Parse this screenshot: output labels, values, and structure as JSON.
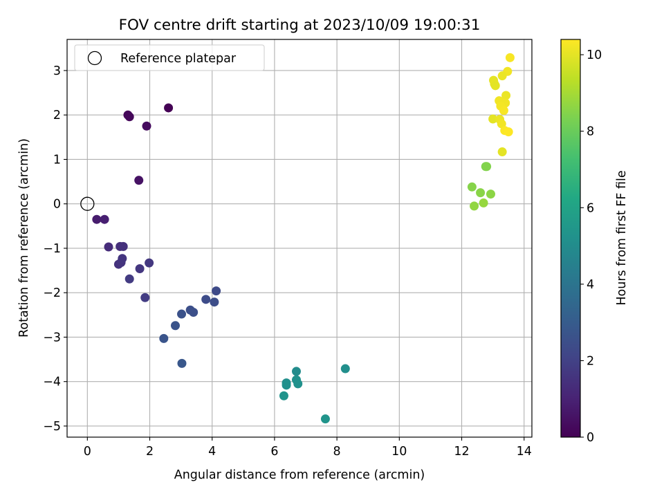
{
  "chart_data": {
    "type": "scatter",
    "title": "FOV centre drift starting at 2023/10/09 19:00:31",
    "xlabel": "Angular distance from reference (arcmin)",
    "ylabel": "Rotation from reference (arcmin)",
    "xlim": [
      -0.65,
      14.25
    ],
    "ylim": [
      -5.25,
      3.7
    ],
    "xticks": [
      0,
      2,
      4,
      6,
      8,
      10,
      12,
      14
    ],
    "yticks": [
      -5,
      -4,
      -3,
      -2,
      -1,
      0,
      1,
      2,
      3
    ],
    "grid": true,
    "legend": {
      "placement": "top-left",
      "entries": [
        "Reference platepar"
      ]
    },
    "reference_point": {
      "x": 0,
      "y": 0
    },
    "colorbar": {
      "label": "Hours from first FF file",
      "range": [
        0,
        10.4
      ],
      "ticks": [
        0,
        2,
        4,
        6,
        8,
        10
      ],
      "colormap": "viridis"
    },
    "points": [
      {
        "x": 2.6,
        "y": 2.16,
        "t": 0.0
      },
      {
        "x": 1.3,
        "y": 2.0,
        "t": 0.15
      },
      {
        "x": 1.35,
        "y": 1.96,
        "t": 0.2
      },
      {
        "x": 1.9,
        "y": 1.75,
        "t": 0.3
      },
      {
        "x": 1.65,
        "y": 0.53,
        "t": 0.5
      },
      {
        "x": 0.3,
        "y": -0.35,
        "t": 0.8
      },
      {
        "x": 0.55,
        "y": -0.35,
        "t": 0.9
      },
      {
        "x": 0.68,
        "y": -0.97,
        "t": 1.3
      },
      {
        "x": 1.05,
        "y": -0.96,
        "t": 1.4
      },
      {
        "x": 1.15,
        "y": -0.96,
        "t": 1.45
      },
      {
        "x": 1.0,
        "y": -1.36,
        "t": 1.5
      },
      {
        "x": 1.08,
        "y": -1.32,
        "t": 1.55
      },
      {
        "x": 1.12,
        "y": -1.23,
        "t": 1.6
      },
      {
        "x": 1.68,
        "y": -1.46,
        "t": 1.65
      },
      {
        "x": 1.98,
        "y": -1.33,
        "t": 1.7
      },
      {
        "x": 1.35,
        "y": -1.69,
        "t": 1.8
      },
      {
        "x": 1.85,
        "y": -2.11,
        "t": 1.85
      },
      {
        "x": 4.13,
        "y": -1.96,
        "t": 2.3
      },
      {
        "x": 3.8,
        "y": -2.15,
        "t": 2.4
      },
      {
        "x": 4.07,
        "y": -2.21,
        "t": 2.45
      },
      {
        "x": 3.3,
        "y": -2.39,
        "t": 2.5
      },
      {
        "x": 3.4,
        "y": -2.44,
        "t": 2.55
      },
      {
        "x": 3.02,
        "y": -2.48,
        "t": 2.6
      },
      {
        "x": 2.82,
        "y": -2.74,
        "t": 2.65
      },
      {
        "x": 2.45,
        "y": -3.03,
        "t": 2.7
      },
      {
        "x": 3.03,
        "y": -3.59,
        "t": 2.8
      },
      {
        "x": 6.7,
        "y": -3.77,
        "t": 5.0
      },
      {
        "x": 8.27,
        "y": -3.71,
        "t": 5.1
      },
      {
        "x": 6.38,
        "y": -4.03,
        "t": 5.1
      },
      {
        "x": 6.38,
        "y": -4.08,
        "t": 5.15
      },
      {
        "x": 6.7,
        "y": -3.96,
        "t": 5.2
      },
      {
        "x": 6.75,
        "y": -4.05,
        "t": 5.2
      },
      {
        "x": 6.3,
        "y": -4.32,
        "t": 5.3
      },
      {
        "x": 7.63,
        "y": -4.84,
        "t": 5.35
      },
      {
        "x": 12.77,
        "y": 0.84,
        "t": 8.4
      },
      {
        "x": 12.8,
        "y": 0.84,
        "t": 8.45
      },
      {
        "x": 12.33,
        "y": 0.38,
        "t": 8.5
      },
      {
        "x": 12.6,
        "y": 0.25,
        "t": 8.55
      },
      {
        "x": 12.93,
        "y": 0.22,
        "t": 8.6
      },
      {
        "x": 12.4,
        "y": -0.05,
        "t": 8.7
      },
      {
        "x": 12.7,
        "y": 0.02,
        "t": 8.75
      },
      {
        "x": 13.55,
        "y": 3.29,
        "t": 10.3
      },
      {
        "x": 13.47,
        "y": 2.98,
        "t": 10.2
      },
      {
        "x": 13.3,
        "y": 2.88,
        "t": 10.1
      },
      {
        "x": 13.02,
        "y": 2.78,
        "t": 10.0
      },
      {
        "x": 13.05,
        "y": 2.7,
        "t": 10.05
      },
      {
        "x": 13.08,
        "y": 2.66,
        "t": 10.0
      },
      {
        "x": 13.42,
        "y": 2.44,
        "t": 10.1
      },
      {
        "x": 13.2,
        "y": 2.32,
        "t": 10.2
      },
      {
        "x": 13.4,
        "y": 2.27,
        "t": 10.2
      },
      {
        "x": 13.25,
        "y": 2.2,
        "t": 10.25
      },
      {
        "x": 13.35,
        "y": 2.1,
        "t": 10.3
      },
      {
        "x": 13.0,
        "y": 1.91,
        "t": 10.0
      },
      {
        "x": 13.22,
        "y": 1.9,
        "t": 10.1
      },
      {
        "x": 13.28,
        "y": 1.8,
        "t": 10.2
      },
      {
        "x": 13.38,
        "y": 1.65,
        "t": 10.35
      },
      {
        "x": 13.5,
        "y": 1.62,
        "t": 10.4
      },
      {
        "x": 13.3,
        "y": 1.17,
        "t": 10.0
      }
    ]
  }
}
